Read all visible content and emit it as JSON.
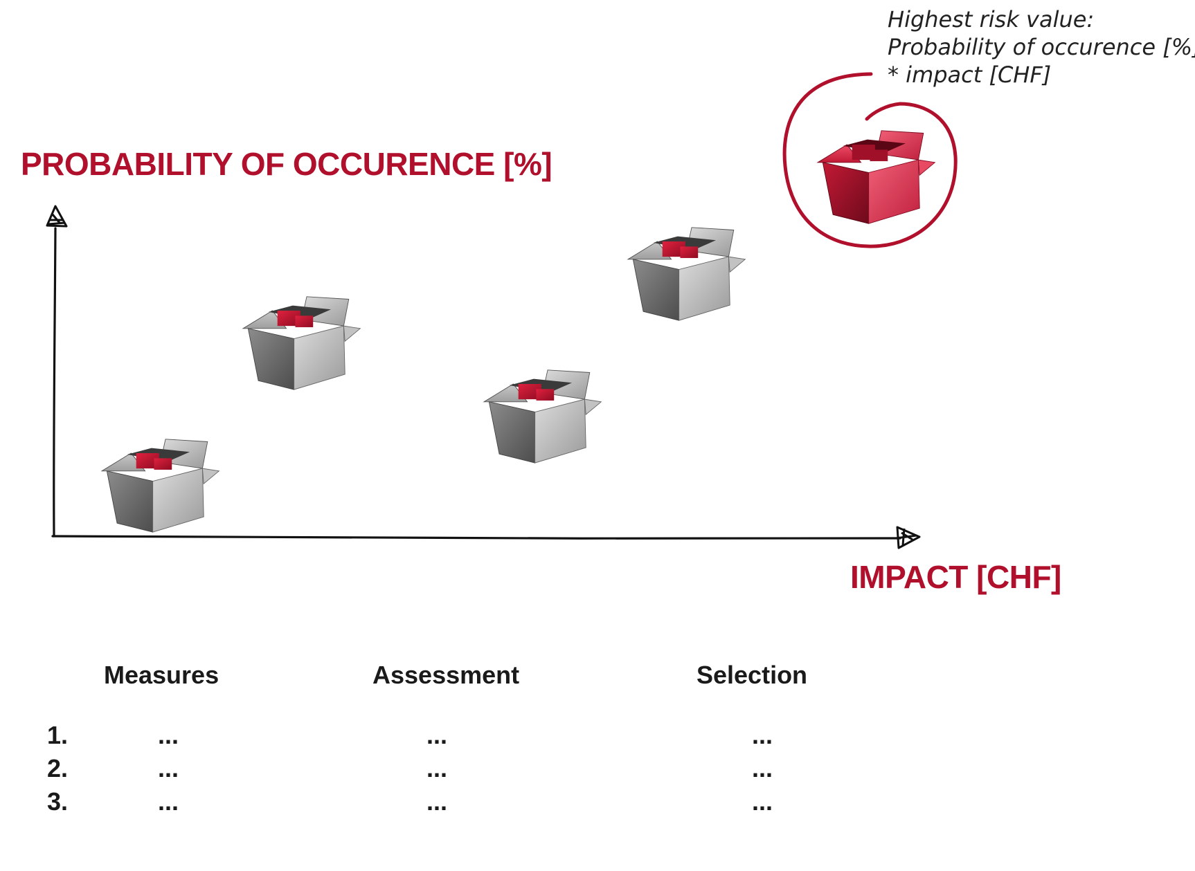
{
  "diagram": {
    "y_axis_label": "PROBABILITY OF OCCURENCE [%]",
    "x_axis_label": "IMPACT [CHF]",
    "accent_color": "#b0102c",
    "highlight_note": {
      "lines": [
        "Highest risk value:",
        "Probability of occurence [%]",
        "* impact [CHF]"
      ]
    },
    "risk_items": [
      {
        "name": "risk-box-1",
        "style": "gray"
      },
      {
        "name": "risk-box-2",
        "style": "gray"
      },
      {
        "name": "risk-box-3",
        "style": "gray"
      },
      {
        "name": "risk-box-4",
        "style": "gray"
      },
      {
        "name": "risk-box-highest",
        "style": "red",
        "highlighted": true
      }
    ]
  },
  "table": {
    "headers": [
      "Measures",
      "Assessment",
      "Selection"
    ],
    "rows": [
      {
        "num": "1.",
        "measures": "...",
        "assessment": "...",
        "selection": "..."
      },
      {
        "num": "2.",
        "measures": "...",
        "assessment": "...",
        "selection": "..."
      },
      {
        "num": "3.",
        "measures": "...",
        "assessment": "...",
        "selection": "..."
      }
    ]
  }
}
